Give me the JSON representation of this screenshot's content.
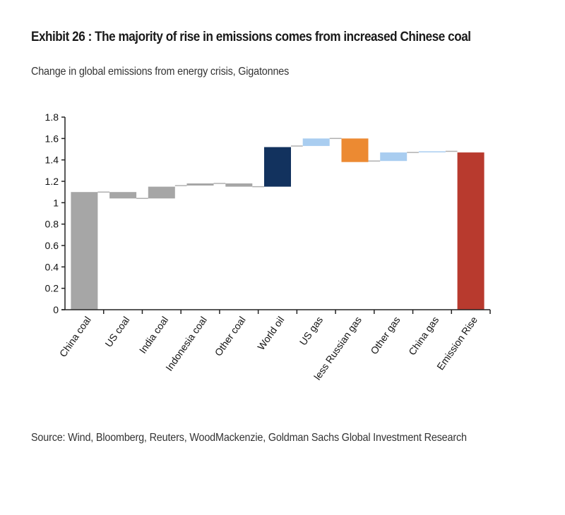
{
  "header": {
    "title": "Exhibit 26 : The majority of rise in emissions comes from increased Chinese coal",
    "subtitle": "Change in global emissions from energy crisis, Gigatonnes"
  },
  "footer": {
    "source": "Source: Wind, Bloomberg, Reuters, WoodMackenzie, Goldman Sachs Global Investment Research"
  },
  "chart_data": {
    "type": "waterfall",
    "title": "Exhibit 26 : The majority of rise in emissions comes from increased Chinese coal",
    "subtitle": "Change in global emissions from energy crisis, Gigatonnes",
    "xlabel": "",
    "ylabel": "Gigatonnes",
    "ylim": [
      0,
      1.8
    ],
    "yticks": [
      0,
      0.2,
      0.4,
      0.6,
      0.8,
      1,
      1.2,
      1.4,
      1.6,
      1.8
    ],
    "ytick_labels": [
      "0",
      "0.2",
      "0.4",
      "0.6",
      "0.8",
      "1",
      "1.2",
      "1.4",
      "1.6",
      "1.8"
    ],
    "grid": false,
    "legend": "none",
    "categories": [
      "China coal",
      "US coal",
      "India coal",
      "Indonesia coal",
      "Other coal",
      "World oil",
      "US gas",
      "less Russian gas",
      "Other gas",
      "China gas",
      "Emission Rise"
    ],
    "bars": [
      {
        "label": "China coal",
        "start": 0,
        "end": 1.1,
        "change": 1.1,
        "kind": "total",
        "color": "#a6a6a6"
      },
      {
        "label": "US coal",
        "start": 1.1,
        "end": 1.04,
        "change": -0.06,
        "kind": "delta",
        "color": "#a6a6a6"
      },
      {
        "label": "India coal",
        "start": 1.04,
        "end": 1.15,
        "change": 0.11,
        "kind": "delta",
        "color": "#a6a6a6"
      },
      {
        "label": "Indonesia coal",
        "start": 1.16,
        "end": 1.18,
        "change": 0.02,
        "kind": "delta",
        "color": "#a6a6a6"
      },
      {
        "label": "Other coal",
        "start": 1.18,
        "end": 1.15,
        "change": -0.03,
        "kind": "delta",
        "color": "#a6a6a6"
      },
      {
        "label": "World oil",
        "start": 1.15,
        "end": 1.52,
        "change": 0.37,
        "kind": "delta",
        "color": "#12325e"
      },
      {
        "label": "US gas",
        "start": 1.53,
        "end": 1.6,
        "change": 0.07,
        "kind": "delta",
        "color": "#a9cdf0"
      },
      {
        "label": "less Russian gas",
        "start": 1.6,
        "end": 1.38,
        "change": -0.22,
        "kind": "delta",
        "color": "#ec8a32"
      },
      {
        "label": "Other gas",
        "start": 1.39,
        "end": 1.47,
        "change": 0.08,
        "kind": "delta",
        "color": "#a9cdf0"
      },
      {
        "label": "China gas",
        "start": 1.47,
        "end": 1.48,
        "change": 0.01,
        "kind": "delta",
        "color": "#a9cdf0"
      },
      {
        "label": "Emission Rise",
        "start": 0,
        "end": 1.47,
        "change": 1.47,
        "kind": "total",
        "color": "#b83a2e"
      }
    ],
    "connector_color": "#b0b0b0",
    "axis_color": "#222222"
  }
}
